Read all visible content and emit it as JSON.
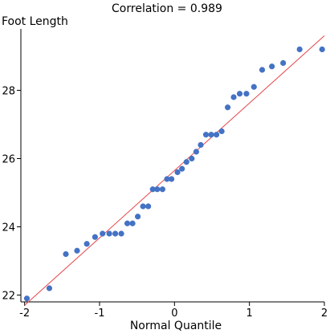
{
  "chart_data": {
    "type": "scatter",
    "title": "Correlation = 0.989",
    "xlabel": "Normal Quantile",
    "ylabel": "Foot Length",
    "xlim": [
      -2.05,
      2.0
    ],
    "ylim": [
      21.8,
      29.8
    ],
    "xticks": [
      "-2",
      "-1",
      "0",
      "1",
      "2"
    ],
    "xtick_values": [
      -2,
      -1,
      0,
      1,
      2
    ],
    "yticks": [
      "22",
      "24",
      "26",
      "28"
    ],
    "ytick_values": [
      22,
      24,
      26,
      28
    ],
    "grid": false,
    "colors": {
      "points": "#4472c4",
      "line": "#e8454a"
    },
    "reference_line": {
      "x": [
        -2.0,
        2.0
      ],
      "y": [
        21.7,
        29.6
      ]
    },
    "series": [
      {
        "x": [
          -1.97,
          -1.67,
          -1.45,
          -1.3,
          -1.17,
          -1.06,
          -0.96,
          -0.87,
          -0.79,
          -0.71,
          -0.63,
          -0.56,
          -0.49,
          -0.42,
          -0.35,
          -0.29,
          -0.23,
          -0.16,
          -0.1,
          -0.04,
          0.04,
          0.1,
          0.16,
          0.23,
          0.29,
          0.35,
          0.42,
          0.49,
          0.56,
          0.63,
          0.71,
          0.79,
          0.87,
          0.96,
          1.06,
          1.17,
          1.3,
          1.45,
          1.67,
          1.97
        ],
        "y": [
          21.9,
          22.2,
          23.2,
          23.3,
          23.5,
          23.7,
          23.8,
          23.8,
          23.8,
          23.8,
          24.1,
          24.1,
          24.3,
          24.6,
          24.6,
          25.1,
          25.1,
          25.1,
          25.4,
          25.4,
          25.6,
          25.7,
          25.9,
          26.0,
          26.2,
          26.4,
          26.7,
          26.7,
          26.7,
          26.8,
          27.5,
          27.8,
          27.9,
          27.9,
          28.1,
          28.6,
          28.7,
          28.8,
          29.2,
          29.2
        ]
      }
    ]
  }
}
